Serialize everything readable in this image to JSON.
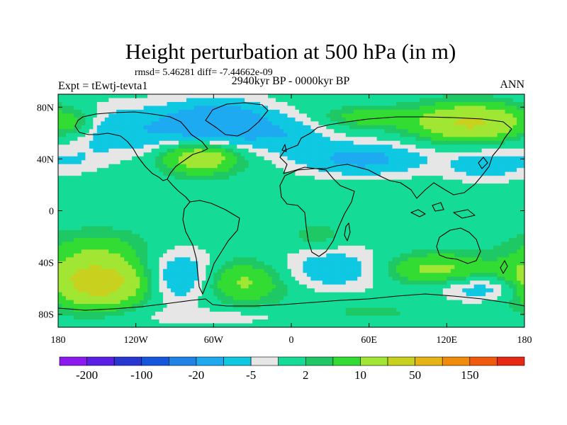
{
  "chart_data": {
    "type": "heatmap",
    "title": "Height perturbation at 500 hPa (in m)",
    "stats": "rmsd= 5.46281 diff= -7.44662e-09",
    "period": "2940kyr BP - 0000kyr BP",
    "experiment": "Expt = tEwtj-tevta1",
    "season": "ANN",
    "x_ticks": [
      "180",
      "120W",
      "60W",
      "0",
      "60E",
      "120E",
      "180"
    ],
    "y_ticks": [
      "80N",
      "40N",
      "0",
      "40S",
      "80S"
    ],
    "xlim": [
      -180,
      180
    ],
    "ylim": [
      -90,
      90
    ],
    "x_tick_values": [
      -180,
      -120,
      -60,
      0,
      60,
      120,
      180
    ],
    "y_tick_values": [
      80,
      40,
      0,
      -40,
      -80
    ],
    "colorbar": {
      "levels": [
        "-200",
        "-100",
        "-20",
        "-5",
        "2",
        "10",
        "50",
        "150"
      ],
      "colors": [
        "#8c19f0",
        "#5a1ee6",
        "#2837d2",
        "#1456dc",
        "#1e82e6",
        "#1eaaf0",
        "#0fc8e1",
        "#e6e6e6",
        "#14dc96",
        "#1ec864",
        "#32dc32",
        "#a0e632",
        "#c8d21e",
        "#e6b414",
        "#f08c0a",
        "#f05a0a",
        "#e62814"
      ]
    },
    "field_blobs": [
      {
        "lon": -130,
        "lat": 62,
        "v": -9,
        "rlon": 55,
        "rlat": 20
      },
      {
        "lon": -55,
        "lat": 67,
        "v": -18,
        "rlon": 40,
        "rlat": 18
      },
      {
        "lon": 0,
        "lat": 58,
        "v": -7,
        "rlon": 30,
        "rlat": 14
      },
      {
        "lon": -165,
        "lat": 68,
        "v": 6,
        "rlon": 14,
        "rlat": 10
      },
      {
        "lon": 140,
        "lat": 68,
        "v": 22,
        "rlon": 45,
        "rlat": 14
      },
      {
        "lon": 55,
        "lat": 72,
        "v": 7,
        "rlon": 30,
        "rlat": 8
      },
      {
        "lon": -70,
        "lat": 42,
        "v": 18,
        "rlon": 30,
        "rlat": 13
      },
      {
        "lon": 55,
        "lat": 40,
        "v": -12,
        "rlon": 50,
        "rlat": 13
      },
      {
        "lon": 150,
        "lat": 35,
        "v": -8,
        "rlon": 30,
        "rlat": 12
      },
      {
        "lon": -165,
        "lat": 38,
        "v": -3,
        "rlon": 20,
        "rlat": 10
      },
      {
        "lon": -150,
        "lat": -28,
        "v": 6,
        "rlon": 40,
        "rlat": 14
      },
      {
        "lon": -150,
        "lat": -55,
        "v": 28,
        "rlon": 38,
        "rlat": 18
      },
      {
        "lon": -85,
        "lat": -52,
        "v": -12,
        "rlon": 30,
        "rlat": 20
      },
      {
        "lon": -40,
        "lat": -55,
        "v": 12,
        "rlon": 35,
        "rlat": 16
      },
      {
        "lon": 35,
        "lat": -45,
        "v": -9,
        "rlon": 45,
        "rlat": 16
      },
      {
        "lon": 20,
        "lat": -20,
        "v": 4,
        "rlon": 20,
        "rlat": 10
      },
      {
        "lon": 110,
        "lat": -45,
        "v": 12,
        "rlon": 45,
        "rlat": 12
      },
      {
        "lon": 150,
        "lat": -60,
        "v": -9,
        "rlon": 35,
        "rlat": 10
      },
      {
        "lon": -60,
        "lat": -82,
        "v": -4,
        "rlon": 60,
        "rlat": 6
      },
      {
        "lon": 60,
        "lat": -78,
        "v": 3,
        "rlon": 40,
        "rlat": 6
      }
    ]
  }
}
